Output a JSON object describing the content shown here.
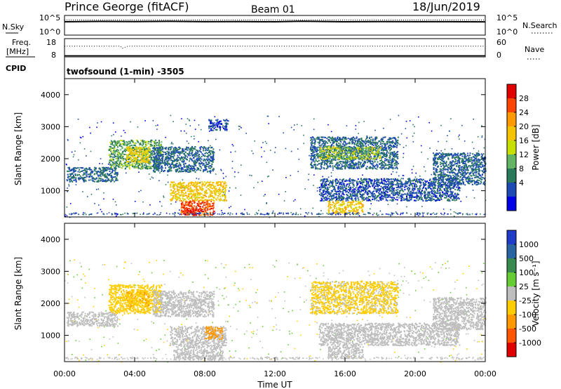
{
  "header": {
    "radar": "Prince George (fitACF)",
    "beam": "Beam 01",
    "date": "18/Jun/2019"
  },
  "noise_panel": {
    "left_label": "N.Sky",
    "left_ticks": [
      "10^5",
      "10^0"
    ],
    "right_label": "N.Search",
    "right_ticks": [
      "10^5",
      "10^0"
    ]
  },
  "freq_panel": {
    "label_line1": "Freq.",
    "label_line2": "[MHz]",
    "left_ticks": [
      "18",
      "8"
    ],
    "right_label": "Nave",
    "right_ticks": [
      "60",
      "0"
    ]
  },
  "cpid_panel": {
    "label": "CPID",
    "text": "twofsound (1-min) -3505"
  },
  "x_axis": {
    "label": "Time UT",
    "ticks": [
      "00:00",
      "04:00",
      "08:00",
      "12:00",
      "16:00",
      "20:00",
      "00:00"
    ]
  },
  "power_colorbar": {
    "label": "Power [dB]",
    "ticks": [
      "28",
      "24",
      "20",
      "16",
      "12",
      "8",
      "4"
    ],
    "colors": [
      "#e00000",
      "#ff4400",
      "#ff9900",
      "#f4c400",
      "#c8e000",
      "#64b464",
      "#2a7a5a",
      "#1e4ab4",
      "#0000e6"
    ]
  },
  "velocity_colorbar": {
    "label": "Velocity [m s⁻¹]",
    "ticks": [
      "1000",
      "500",
      "100",
      "25",
      "-25",
      "-100",
      "-500",
      "-1000"
    ],
    "colors": [
      "#1e3cc8",
      "#2a64a0",
      "#3a8a50",
      "#66cc33",
      "#bebebe",
      "#ffcc00",
      "#ff9900",
      "#ff5500",
      "#e00000"
    ]
  },
  "chart_data": [
    {
      "type": "line",
      "title": "N.Sky / N.Search",
      "ylabel": "N.Sky",
      "y_scale": "log",
      "ylim": [
        "10^0",
        "10^5"
      ],
      "x_range_hours": [
        0,
        24
      ],
      "series": [
        {
          "name": "N.Sky",
          "x": [
            0,
            2,
            4,
            6,
            8,
            10,
            12,
            13.5,
            16,
            18,
            20,
            22,
            24
          ],
          "values": [
            2500,
            3000,
            2800,
            3200,
            2600,
            2800,
            2500,
            3500,
            2500,
            2700,
            2600,
            2600,
            2400
          ]
        },
        {
          "name": "N.Search",
          "x": [
            0,
            6,
            12,
            18,
            24
          ],
          "values": [
            3000,
            3000,
            3000,
            3000,
            3000
          ]
        }
      ]
    },
    {
      "type": "line",
      "ylabel": "Freq. [MHz]",
      "ylim": [
        8,
        18
      ],
      "x_range_hours": [
        0,
        24
      ],
      "series": [
        {
          "name": "Freq.",
          "x": [
            0,
            1,
            2,
            3.2,
            3.4,
            4,
            8,
            12,
            16,
            20,
            24
          ],
          "values": [
            9,
            9,
            9,
            9,
            9,
            9,
            9,
            9,
            9,
            9,
            9
          ]
        },
        {
          "name": "Nave",
          "x": [
            0,
            2,
            3.2,
            3.3,
            3.6,
            4,
            8,
            12,
            16,
            20,
            24
          ],
          "values": [
            35,
            35,
            35,
            28,
            35,
            35,
            35,
            35,
            35,
            35,
            35
          ]
        }
      ]
    },
    {
      "type": "heatmap",
      "ylabel": "Slant Range [km]",
      "xlabel": "Time UT",
      "colorbar": "Power [dB]",
      "ylim": [
        180,
        4500
      ],
      "x_range_hours": [
        0,
        24
      ],
      "regions": [
        {
          "t_start": 0.1,
          "t_end": 3.0,
          "r_min": 1300,
          "r_max": 1750,
          "power_db": 8
        },
        {
          "t_start": 2.5,
          "t_end": 5.5,
          "r_min": 1700,
          "r_max": 2600,
          "power_db": 12
        },
        {
          "t_start": 3.5,
          "t_end": 4.8,
          "r_min": 1900,
          "r_max": 2400,
          "power_db": 17
        },
        {
          "t_start": 5.0,
          "t_end": 8.5,
          "r_min": 1600,
          "r_max": 2400,
          "power_db": 8
        },
        {
          "t_start": 6.0,
          "t_end": 9.2,
          "r_min": 700,
          "r_max": 1300,
          "power_db": 18
        },
        {
          "t_start": 6.6,
          "t_end": 8.5,
          "r_min": 250,
          "r_max": 700,
          "power_db": 26
        },
        {
          "t_start": 6.8,
          "t_end": 7.9,
          "r_min": 250,
          "r_max": 450,
          "power_db": 29
        },
        {
          "t_start": 8.2,
          "t_end": 9.3,
          "r_min": 2900,
          "r_max": 3250,
          "power_db": 6
        },
        {
          "t_start": 14.0,
          "t_end": 19.0,
          "r_min": 1700,
          "r_max": 2700,
          "power_db": 8
        },
        {
          "t_start": 14.5,
          "t_end": 18.0,
          "r_min": 2000,
          "r_max": 2400,
          "power_db": 14
        },
        {
          "t_start": 14.5,
          "t_end": 22.5,
          "r_min": 700,
          "r_max": 1400,
          "power_db": 7
        },
        {
          "t_start": 15.0,
          "t_end": 17.0,
          "r_min": 300,
          "r_max": 700,
          "power_db": 18
        },
        {
          "t_start": 21.0,
          "t_end": 24.0,
          "r_min": 1200,
          "r_max": 2200,
          "power_db": 8
        }
      ]
    },
    {
      "type": "heatmap",
      "ylabel": "Slant Range [km]",
      "xlabel": "Time UT",
      "colorbar": "Velocity [m s⁻¹]",
      "ylim": [
        180,
        4500
      ],
      "x_range_hours": [
        0,
        24
      ],
      "regions": [
        {
          "t_start": 0.1,
          "t_end": 3.0,
          "r_min": 1300,
          "r_max": 1750,
          "velocity": 0
        },
        {
          "t_start": 2.5,
          "t_end": 5.5,
          "r_min": 1700,
          "r_max": 2600,
          "velocity": -60
        },
        {
          "t_start": 3.5,
          "t_end": 4.8,
          "r_min": 1900,
          "r_max": 2400,
          "velocity": -90
        },
        {
          "t_start": 5.0,
          "t_end": 8.5,
          "r_min": 1600,
          "r_max": 2400,
          "velocity": 0
        },
        {
          "t_start": 6.0,
          "t_end": 9.2,
          "r_min": 700,
          "r_max": 1300,
          "velocity": 0
        },
        {
          "t_start": 6.2,
          "t_end": 9.0,
          "r_min": 250,
          "r_max": 700,
          "velocity": 0
        },
        {
          "t_start": 8.0,
          "t_end": 9.0,
          "r_min": 900,
          "r_max": 1300,
          "velocity": -150
        },
        {
          "t_start": 14.0,
          "t_end": 19.0,
          "r_min": 1700,
          "r_max": 2700,
          "velocity": -40
        },
        {
          "t_start": 14.5,
          "t_end": 22.5,
          "r_min": 700,
          "r_max": 1400,
          "velocity": 0
        },
        {
          "t_start": 15.0,
          "t_end": 17.0,
          "r_min": 300,
          "r_max": 700,
          "velocity": 0
        },
        {
          "t_start": 21.0,
          "t_end": 24.0,
          "r_min": 1200,
          "r_max": 2200,
          "velocity": 0
        }
      ]
    }
  ]
}
